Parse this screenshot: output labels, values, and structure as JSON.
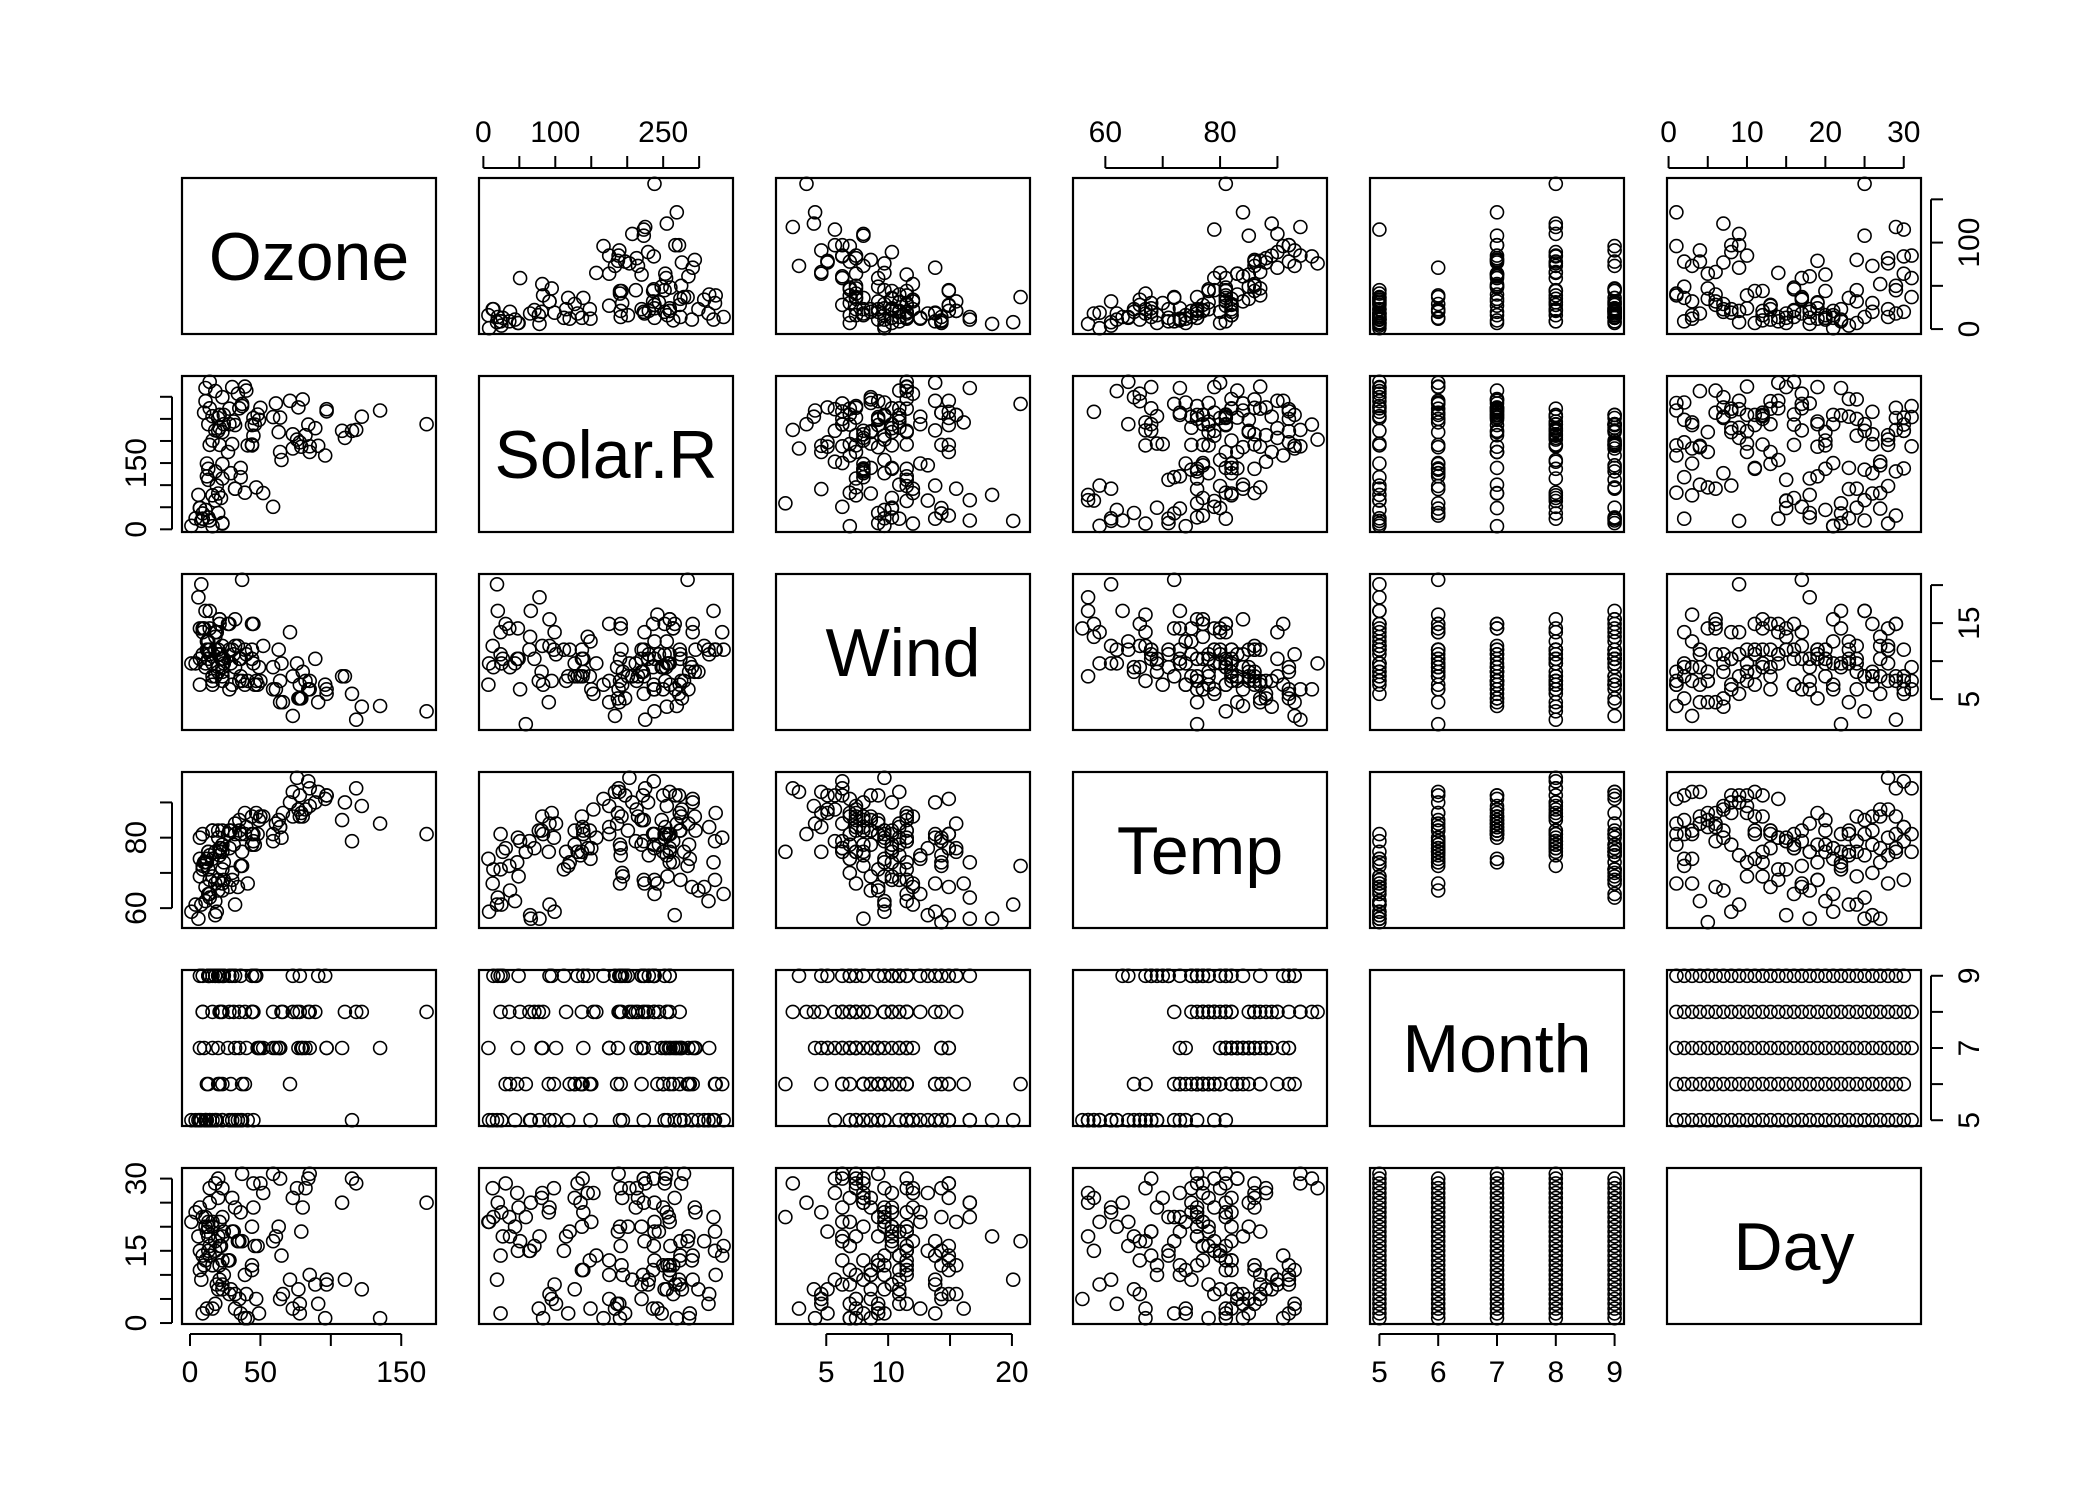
{
  "chart_data": {
    "type": "scatter",
    "plot_kind": "scatterplot-matrix",
    "variables": [
      {
        "name": "Ozone",
        "range": [
          1,
          168
        ],
        "ticks": [
          0,
          50,
          100,
          150
        ],
        "tick_labels": [
          "0",
          "50",
          "150"
        ],
        "tick_label_values": [
          0,
          50,
          150
        ]
      },
      {
        "name": "Solar.R",
        "range": [
          7,
          334
        ],
        "ticks": [
          0,
          50,
          100,
          150,
          200,
          250,
          300
        ],
        "tick_labels": [
          "0",
          "100",
          "250"
        ],
        "tick_label_values": [
          0,
          100,
          250
        ]
      },
      {
        "name": "Wind",
        "range": [
          1.7,
          20.7
        ],
        "ticks": [
          5,
          10,
          15,
          20
        ],
        "tick_labels": [
          "5",
          "10",
          "20"
        ],
        "tick_label_values": [
          5,
          10,
          20
        ]
      },
      {
        "name": "Temp",
        "range": [
          56,
          97
        ],
        "ticks": [
          60,
          70,
          80,
          90
        ],
        "tick_labels": [
          "60",
          "80"
        ],
        "tick_label_values": [
          60,
          80
        ]
      },
      {
        "name": "Month",
        "range": [
          5,
          9
        ],
        "ticks": [
          5,
          6,
          7,
          8,
          9
        ],
        "tick_labels": [
          "5",
          "6",
          "7",
          "8",
          "9"
        ],
        "tick_label_values": [
          5,
          6,
          7,
          8,
          9
        ]
      },
      {
        "name": "Day",
        "range": [
          1,
          31
        ],
        "ticks": [
          0,
          5,
          10,
          15,
          20,
          25,
          30
        ],
        "tick_labels": [
          "0",
          "10",
          "20",
          "30"
        ],
        "tick_label_values": [
          0,
          10,
          20,
          30
        ]
      }
    ],
    "y_axes": {
      "Ozone": {
        "ticks": [
          0,
          50,
          100,
          150
        ],
        "tick_labels": [
          "0",
          "100"
        ],
        "tick_label_values": [
          0,
          100
        ]
      },
      "Solar.R": {
        "ticks": [
          0,
          50,
          100,
          150,
          200,
          250,
          300
        ],
        "tick_labels": [
          "0",
          "150"
        ],
        "tick_label_values": [
          0,
          150
        ]
      },
      "Wind": {
        "ticks": [
          5,
          10,
          15,
          20
        ],
        "tick_labels": [
          "5",
          "15"
        ],
        "tick_label_values": [
          5,
          15
        ]
      },
      "Temp": {
        "ticks": [
          60,
          70,
          80,
          90
        ],
        "tick_labels": [
          "60",
          "80"
        ],
        "tick_label_values": [
          60,
          80
        ]
      },
      "Month": {
        "ticks": [
          5,
          6,
          7,
          8,
          9
        ],
        "tick_labels": [
          "5",
          "7",
          "9"
        ],
        "tick_label_values": [
          5,
          7,
          9
        ]
      },
      "Day": {
        "ticks": [
          0,
          5,
          10,
          15,
          20,
          25,
          30
        ],
        "tick_labels": [
          "0",
          "15",
          "30"
        ],
        "tick_label_values": [
          0,
          15,
          30
        ]
      }
    },
    "grid": false,
    "legend": "none",
    "observations": [
      [
        41,
        190,
        7.4,
        67,
        5,
        1
      ],
      [
        36,
        118,
        8.0,
        72,
        5,
        2
      ],
      [
        12,
        149,
        12.6,
        74,
        5,
        3
      ],
      [
        18,
        313,
        11.5,
        62,
        5,
        4
      ],
      [
        null,
        null,
        14.3,
        56,
        5,
        5
      ],
      [
        28,
        null,
        14.9,
        66,
        5,
        6
      ],
      [
        23,
        299,
        8.6,
        65,
        5,
        7
      ],
      [
        19,
        99,
        13.8,
        59,
        5,
        8
      ],
      [
        8,
        19,
        20.1,
        61,
        5,
        9
      ],
      [
        null,
        194,
        8.6,
        69,
        5,
        10
      ],
      [
        7,
        null,
        6.9,
        74,
        5,
        11
      ],
      [
        16,
        256,
        9.7,
        69,
        5,
        12
      ],
      [
        11,
        290,
        9.2,
        66,
        5,
        13
      ],
      [
        14,
        274,
        10.9,
        68,
        5,
        14
      ],
      [
        18,
        65,
        13.2,
        58,
        5,
        15
      ],
      [
        14,
        334,
        11.5,
        64,
        5,
        16
      ],
      [
        34,
        307,
        12.0,
        66,
        5,
        17
      ],
      [
        6,
        78,
        18.4,
        57,
        5,
        18
      ],
      [
        30,
        322,
        11.5,
        68,
        5,
        19
      ],
      [
        11,
        44,
        9.7,
        62,
        5,
        20
      ],
      [
        1,
        8,
        9.7,
        59,
        5,
        21
      ],
      [
        11,
        320,
        16.6,
        73,
        5,
        22
      ],
      [
        4,
        25,
        9.7,
        61,
        5,
        23
      ],
      [
        32,
        92,
        12.0,
        61,
        5,
        24
      ],
      [
        null,
        66,
        16.6,
        57,
        5,
        25
      ],
      [
        null,
        266,
        14.9,
        58,
        5,
        26
      ],
      [
        null,
        null,
        8.0,
        57,
        5,
        27
      ],
      [
        23,
        13,
        12.0,
        67,
        5,
        28
      ],
      [
        45,
        252,
        14.9,
        81,
        5,
        29
      ],
      [
        115,
        223,
        5.7,
        79,
        5,
        30
      ],
      [
        37,
        279,
        7.4,
        76,
        5,
        31
      ],
      [
        null,
        286,
        8.6,
        78,
        6,
        1
      ],
      [
        null,
        287,
        9.7,
        74,
        6,
        2
      ],
      [
        null,
        242,
        16.1,
        67,
        6,
        3
      ],
      [
        null,
        186,
        9.2,
        84,
        6,
        4
      ],
      [
        null,
        220,
        8.6,
        85,
        6,
        5
      ],
      [
        null,
        264,
        14.3,
        79,
        6,
        6
      ],
      [
        29,
        127,
        9.7,
        82,
        6,
        7
      ],
      [
        null,
        273,
        6.9,
        87,
        6,
        8
      ],
      [
        71,
        291,
        13.8,
        90,
        6,
        9
      ],
      [
        39,
        323,
        11.5,
        87,
        6,
        10
      ],
      [
        null,
        259,
        10.9,
        93,
        6,
        11
      ],
      [
        null,
        250,
        9.2,
        92,
        6,
        12
      ],
      [
        23,
        148,
        8.0,
        82,
        6,
        13
      ],
      [
        null,
        332,
        13.8,
        80,
        6,
        14
      ],
      [
        null,
        322,
        11.5,
        79,
        6,
        15
      ],
      [
        21,
        191,
        14.9,
        77,
        6,
        16
      ],
      [
        37,
        284,
        20.7,
        72,
        6,
        17
      ],
      [
        20,
        37,
        9.2,
        65,
        6,
        18
      ],
      [
        12,
        120,
        11.5,
        73,
        6,
        19
      ],
      [
        13,
        137,
        10.3,
        76,
        6,
        20
      ],
      [
        null,
        150,
        6.3,
        77,
        6,
        21
      ],
      [
        null,
        59,
        1.7,
        76,
        6,
        22
      ],
      [
        null,
        91,
        4.6,
        76,
        6,
        23
      ],
      [
        null,
        250,
        6.3,
        76,
        6,
        24
      ],
      [
        null,
        135,
        8.0,
        75,
        6,
        25
      ],
      [
        null,
        127,
        8.0,
        78,
        6,
        26
      ],
      [
        null,
        47,
        10.3,
        73,
        6,
        27
      ],
      [
        null,
        98,
        11.5,
        80,
        6,
        28
      ],
      [
        null,
        31,
        14.9,
        77,
        6,
        29
      ],
      [
        null,
        138,
        8.0,
        83,
        6,
        30
      ],
      [
        135,
        269,
        4.1,
        84,
        7,
        1
      ],
      [
        49,
        248,
        9.2,
        85,
        7,
        2
      ],
      [
        32,
        236,
        9.2,
        81,
        7,
        3
      ],
      [
        null,
        101,
        10.9,
        84,
        7,
        4
      ],
      [
        64,
        175,
        4.6,
        83,
        7,
        5
      ],
      [
        40,
        314,
        10.9,
        83,
        7,
        6
      ],
      [
        77,
        276,
        5.1,
        88,
        7,
        7
      ],
      [
        97,
        267,
        6.3,
        92,
        7,
        8
      ],
      [
        97,
        272,
        5.7,
        92,
        7,
        9
      ],
      [
        85,
        175,
        7.4,
        89,
        7,
        10
      ],
      [
        null,
        139,
        8.6,
        82,
        7,
        11
      ],
      [
        10,
        264,
        14.3,
        73,
        7,
        12
      ],
      [
        27,
        175,
        14.9,
        81,
        7,
        13
      ],
      [
        null,
        291,
        14.9,
        91,
        7,
        14
      ],
      [
        7,
        48,
        14.3,
        80,
        7,
        15
      ],
      [
        48,
        260,
        6.9,
        81,
        7,
        16
      ],
      [
        35,
        274,
        10.3,
        82,
        7,
        17
      ],
      [
        61,
        285,
        6.3,
        84,
        7,
        18
      ],
      [
        79,
        187,
        5.1,
        87,
        7,
        19
      ],
      [
        63,
        220,
        11.5,
        85,
        7,
        20
      ],
      [
        16,
        7,
        6.9,
        74,
        7,
        21
      ],
      [
        null,
        258,
        9.7,
        81,
        7,
        22
      ],
      [
        null,
        295,
        11.5,
        82,
        7,
        23
      ],
      [
        80,
        294,
        8.6,
        86,
        7,
        24
      ],
      [
        108,
        223,
        8.0,
        85,
        7,
        25
      ],
      [
        20,
        81,
        8.6,
        82,
        7,
        26
      ],
      [
        52,
        82,
        12.0,
        86,
        7,
        27
      ],
      [
        82,
        213,
        7.4,
        88,
        7,
        28
      ],
      [
        50,
        275,
        7.4,
        86,
        7,
        29
      ],
      [
        64,
        253,
        7.4,
        83,
        7,
        30
      ],
      [
        59,
        254,
        9.2,
        81,
        7,
        31
      ],
      [
        39,
        83,
        6.9,
        81,
        8,
        1
      ],
      [
        9,
        24,
        13.8,
        81,
        8,
        2
      ],
      [
        16,
        77,
        7.4,
        82,
        8,
        3
      ],
      [
        78,
        null,
        6.9,
        86,
        8,
        4
      ],
      [
        35,
        null,
        7.4,
        85,
        8,
        5
      ],
      [
        66,
        null,
        4.6,
        87,
        8,
        6
      ],
      [
        122,
        255,
        4.0,
        89,
        8,
        7
      ],
      [
        89,
        229,
        10.3,
        90,
        8,
        8
      ],
      [
        110,
        207,
        8.0,
        90,
        8,
        9
      ],
      [
        null,
        222,
        8.6,
        92,
        8,
        10
      ],
      [
        null,
        137,
        11.5,
        86,
        8,
        11
      ],
      [
        44,
        192,
        11.5,
        86,
        8,
        12
      ],
      [
        28,
        273,
        11.5,
        82,
        8,
        13
      ],
      [
        65,
        157,
        9.7,
        80,
        8,
        14
      ],
      [
        null,
        64,
        11.5,
        79,
        8,
        15
      ],
      [
        22,
        71,
        10.3,
        77,
        8,
        16
      ],
      [
        59,
        51,
        6.3,
        79,
        8,
        17
      ],
      [
        23,
        115,
        7.4,
        76,
        8,
        18
      ],
      [
        31,
        244,
        10.9,
        78,
        8,
        19
      ],
      [
        44,
        190,
        10.3,
        78,
        8,
        20
      ],
      [
        21,
        259,
        15.5,
        77,
        8,
        21
      ],
      [
        9,
        36,
        14.3,
        72,
        8,
        22
      ],
      [
        null,
        255,
        12.6,
        75,
        8,
        23
      ],
      [
        45,
        212,
        9.7,
        79,
        8,
        24
      ],
      [
        168,
        238,
        3.4,
        81,
        8,
        25
      ],
      [
        73,
        215,
        8.0,
        86,
        8,
        26
      ],
      [
        null,
        153,
        5.7,
        88,
        8,
        27
      ],
      [
        76,
        203,
        9.7,
        97,
        8,
        28
      ],
      [
        118,
        225,
        2.3,
        94,
        8,
        29
      ],
      [
        84,
        237,
        6.3,
        96,
        8,
        30
      ],
      [
        85,
        188,
        6.3,
        94,
        8,
        31
      ],
      [
        96,
        167,
        6.9,
        91,
        9,
        1
      ],
      [
        78,
        197,
        5.1,
        92,
        9,
        2
      ],
      [
        73,
        183,
        2.8,
        93,
        9,
        3
      ],
      [
        91,
        189,
        4.6,
        93,
        9,
        4
      ],
      [
        47,
        95,
        7.4,
        87,
        9,
        5
      ],
      [
        32,
        92,
        15.5,
        84,
        9,
        6
      ],
      [
        20,
        252,
        10.9,
        80,
        9,
        7
      ],
      [
        23,
        220,
        10.3,
        78,
        9,
        8
      ],
      [
        21,
        230,
        10.9,
        75,
        9,
        9
      ],
      [
        24,
        259,
        9.7,
        73,
        9,
        10
      ],
      [
        44,
        236,
        14.9,
        81,
        9,
        11
      ],
      [
        21,
        259,
        15.5,
        76,
        9,
        12
      ],
      [
        28,
        238,
        6.3,
        77,
        9,
        13
      ],
      [
        9,
        24,
        10.9,
        71,
        9,
        14
      ],
      [
        13,
        112,
        11.5,
        71,
        9,
        15
      ],
      [
        46,
        237,
        6.9,
        78,
        9,
        16
      ],
      [
        18,
        224,
        13.8,
        67,
        9,
        17
      ],
      [
        13,
        27,
        10.3,
        76,
        9,
        18
      ],
      [
        24,
        238,
        10.3,
        68,
        9,
        19
      ],
      [
        16,
        201,
        8.0,
        82,
        9,
        20
      ],
      [
        13,
        238,
        12.6,
        64,
        9,
        21
      ],
      [
        23,
        14,
        9.2,
        71,
        9,
        22
      ],
      [
        36,
        139,
        10.3,
        81,
        9,
        23
      ],
      [
        7,
        49,
        10.3,
        69,
        9,
        24
      ],
      [
        14,
        20,
        16.6,
        63,
        9,
        25
      ],
      [
        30,
        193,
        6.9,
        70,
        9,
        26
      ],
      [
        null,
        145,
        13.2,
        77,
        9,
        27
      ],
      [
        14,
        191,
        14.3,
        75,
        9,
        28
      ],
      [
        18,
        131,
        8.0,
        76,
        9,
        29
      ],
      [
        20,
        223,
        11.5,
        68,
        9,
        30
      ]
    ]
  }
}
